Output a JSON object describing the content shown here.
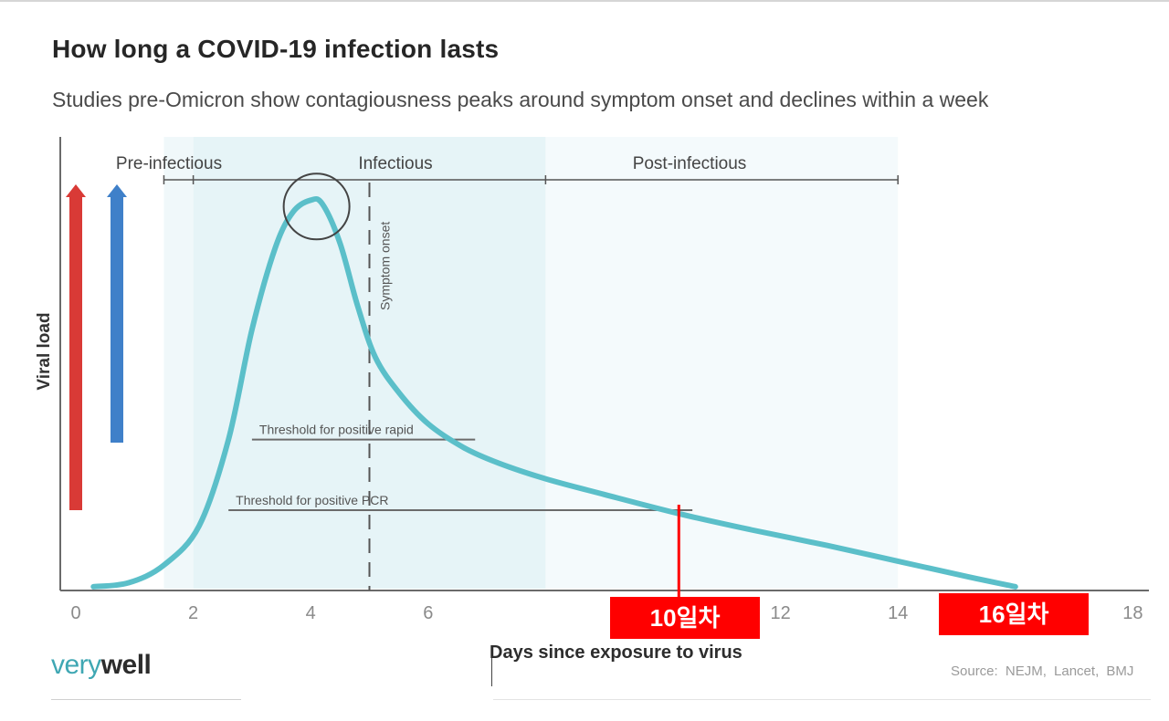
{
  "header": {
    "title": "How long a COVID-19 infection lasts",
    "subtitle": "Studies pre-Omicron show contagiousness peaks around symptom onset and declines within a week"
  },
  "chart_data": {
    "type": "line",
    "title": "How long a COVID-19 infection lasts",
    "xlabel": "Days since exposure to virus",
    "ylabel": "Viral load",
    "xlim": [
      0,
      18
    ],
    "ylim": [
      0,
      100
    ],
    "x_ticks": [
      0,
      2,
      4,
      6,
      8,
      10,
      12,
      14,
      16,
      18
    ],
    "x_tick_labels": [
      "0",
      "2",
      "4",
      "6",
      "",
      "",
      "12",
      "14",
      "",
      "18"
    ],
    "series": [
      {
        "name": "Viral load",
        "color": "#5bbfc9",
        "x": [
          0.3,
          0.9,
          1.5,
          2.1,
          2.6,
          3.0,
          3.4,
          3.7,
          4.0,
          4.2,
          4.5,
          4.8,
          5.1,
          5.5,
          6.0,
          6.6,
          7.2,
          8.0,
          9.0,
          10.3,
          11.5,
          12.8,
          14.0,
          15.2,
          16.0
        ],
        "values": [
          0.5,
          1.5,
          6,
          16,
          38,
          66,
          87,
          96,
          99,
          98,
          88,
          72,
          59,
          50,
          42,
          36,
          32,
          28,
          24,
          19,
          15,
          11,
          7,
          3,
          0.5
        ]
      }
    ],
    "phases": [
      {
        "label": "Pre-infectious",
        "start": 1.5,
        "end": 2.0
      },
      {
        "label": "Infectious",
        "start": 2.0,
        "end": 8.0
      },
      {
        "label": "Post-infectious",
        "start": 8.0,
        "end": 14.0
      }
    ],
    "thresholds": [
      {
        "label": "Threshold for positive rapid",
        "value": 38,
        "x_start": 3.0,
        "x_end": 6.8
      },
      {
        "label": "Threshold for positive PCR",
        "value": 20,
        "x_start": 2.6,
        "x_end": 10.5
      }
    ],
    "symptom_onset": {
      "label": "Symptom onset",
      "x": 5.0
    },
    "peak": {
      "x": 4.1,
      "value": 99
    },
    "markers": [
      {
        "label": "10일차",
        "x": 10.3
      },
      {
        "label": "16일차",
        "x": 16.0
      }
    ],
    "colors": {
      "curve": "#5bbfc9",
      "band_light": "#f0f8fa",
      "band_mid": "#e6f4f7",
      "arrow_red": "#d93a36",
      "arrow_blue": "#3f80c9",
      "marker_red": "#ff0000"
    }
  },
  "footer": {
    "brand_very": "very",
    "brand_well": "well",
    "source": "Source:  NEJM, Lancet, BMJ"
  }
}
